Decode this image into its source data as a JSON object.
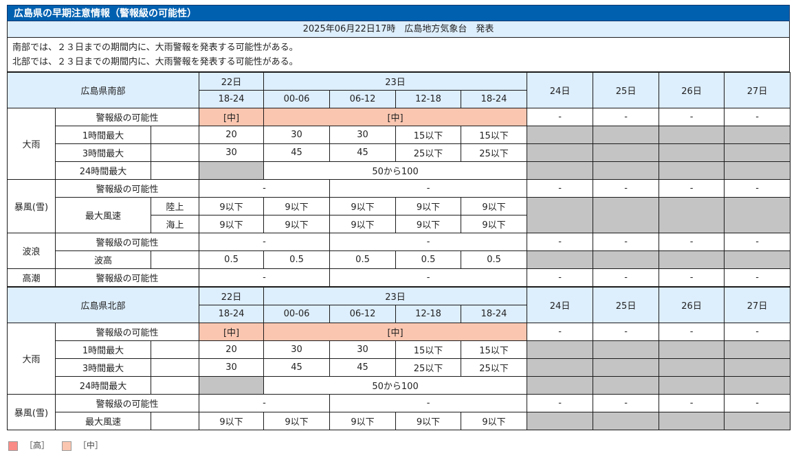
{
  "title": "広島県の早期注意情報（警報級の可能性）",
  "issued": "2025年06月22日17時　広島地方気象台　発表",
  "summary": [
    "南部では、２３日までの期間内に、大雨警報を発表する可能性がある。",
    "北部では、２３日までの期間内に、大雨警報を発表する可能性がある。"
  ],
  "colors": {
    "title_bg": "#0060b0",
    "header_bg": "#ddeefc",
    "high": "#fa8c87",
    "mid": "#fbc6b0",
    "gray": "#c4c4c4"
  },
  "south": {
    "region": "広島県南部",
    "day1": "22日",
    "day2": "23日",
    "slots": [
      "18-24",
      "00-06",
      "06-12",
      "12-18",
      "18-24"
    ],
    "later_days": [
      "24日",
      "25日",
      "26日",
      "27日"
    ],
    "rain": {
      "label": "大雨",
      "possibility_label": "警報級の可能性",
      "possibility_day1": "[中]",
      "possibility_day2": "[中]",
      "later": [
        "-",
        "-",
        "-",
        "-"
      ],
      "h1_label": "1時間最大",
      "h1": [
        "20",
        "30",
        "30",
        "15以下",
        "15以下"
      ],
      "h3_label": "3時間最大",
      "h3": [
        "30",
        "45",
        "45",
        "25以下",
        "25以下"
      ],
      "h24_label": "24時間最大",
      "h24": "50から100"
    },
    "storm": {
      "label": "暴風(雪)",
      "possibility_label": "警報級の可能性",
      "possibility_day1": "-",
      "possibility_day2": "-",
      "later": [
        "-",
        "-",
        "-",
        "-"
      ],
      "wind_label": "最大風速",
      "land_label": "陸上",
      "land": [
        "9以下",
        "9以下",
        "9以下",
        "9以下",
        "9以下"
      ],
      "sea_label": "海上",
      "sea": [
        "9以下",
        "9以下",
        "9以下",
        "9以下",
        "9以下"
      ]
    },
    "waves": {
      "label": "波浪",
      "possibility_label": "警報級の可能性",
      "possibility_day1": "-",
      "possibility_day2": "-",
      "later": [
        "-",
        "-",
        "-",
        "-"
      ],
      "height_label": "波高",
      "height": [
        "0.5",
        "0.5",
        "0.5",
        "0.5",
        "0.5"
      ]
    },
    "tide": {
      "label": "高潮",
      "possibility_label": "警報級の可能性",
      "possibility_day1": "-",
      "possibility_day2": "-",
      "later": [
        "-",
        "-",
        "-",
        "-"
      ]
    }
  },
  "north": {
    "region": "広島県北部",
    "day1": "22日",
    "day2": "23日",
    "slots": [
      "18-24",
      "00-06",
      "06-12",
      "12-18",
      "18-24"
    ],
    "later_days": [
      "24日",
      "25日",
      "26日",
      "27日"
    ],
    "rain": {
      "label": "大雨",
      "possibility_label": "警報級の可能性",
      "possibility_day1": "[中]",
      "possibility_day2": "[中]",
      "later": [
        "-",
        "-",
        "-",
        "-"
      ],
      "h1_label": "1時間最大",
      "h1": [
        "20",
        "30",
        "30",
        "15以下",
        "15以下"
      ],
      "h3_label": "3時間最大",
      "h3": [
        "30",
        "45",
        "45",
        "25以下",
        "25以下"
      ],
      "h24_label": "24時間最大",
      "h24": "50から100"
    },
    "storm": {
      "label": "暴風(雪)",
      "possibility_label": "警報級の可能性",
      "possibility_day1": "-",
      "possibility_day2": "-",
      "later": [
        "-",
        "-",
        "-",
        "-"
      ],
      "wind_label": "最大風速",
      "wind": [
        "9以下",
        "9以下",
        "9以下",
        "9以下",
        "9以下"
      ]
    }
  },
  "legend": [
    {
      "label": "［高］",
      "color": "#fa8c87"
    },
    {
      "label": "［中］",
      "color": "#fbc6b0"
    }
  ]
}
